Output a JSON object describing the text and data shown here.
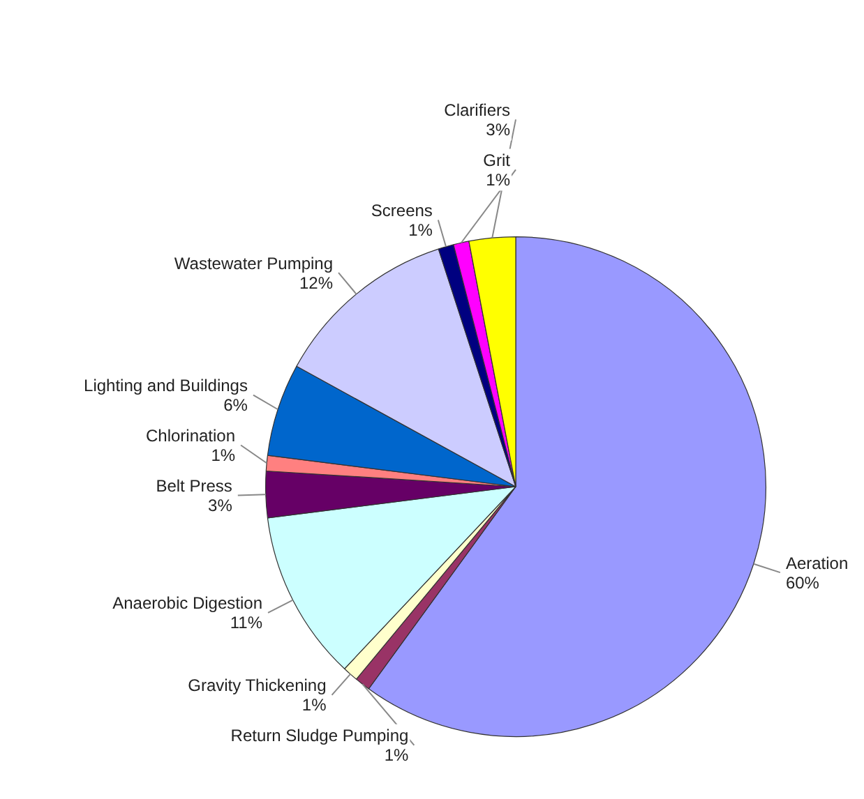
{
  "chart_data": {
    "type": "pie",
    "categories": [
      "Aeration",
      "Return Sludge Pumping",
      "Gravity Thickening",
      "Anaerobic Digestion",
      "Belt Press",
      "Chlorination",
      "Lighting and Buildings",
      "Wastewater Pumping",
      "Screens",
      "Grit",
      "Clarifiers"
    ],
    "values": [
      60,
      1,
      1,
      11,
      3,
      1,
      6,
      12,
      1,
      1,
      3
    ],
    "value_labels": [
      "60%",
      "1%",
      "1%",
      "11%",
      "3%",
      "1%",
      "6%",
      "12%",
      "1%",
      "1%",
      "3%"
    ],
    "colors": [
      "#9999ff",
      "#993366",
      "#ffffcc",
      "#ccffff",
      "#660066",
      "#ff8080",
      "#0066cc",
      "#ccccff",
      "#000080",
      "#ff00ff",
      "#ffff00"
    ],
    "legend": false
  }
}
